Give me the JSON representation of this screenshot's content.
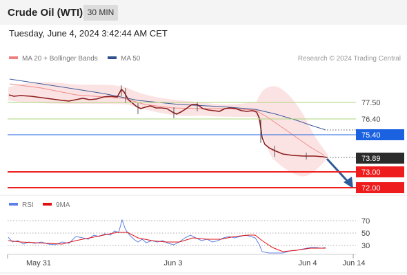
{
  "header": {
    "title": "Crude Oil (WTI)",
    "interval": "30 MIN"
  },
  "timestamp": "Tuesday, June 4, 2024 3:42:44 AM CET",
  "legend": {
    "ma20": {
      "label": "MA 20 + Bollinger Bands",
      "color": "#f08080"
    },
    "ma50": {
      "label": "MA 50",
      "color": "#2f4f8f"
    },
    "copyright": "Research © 2024 Trading Central"
  },
  "price_levels": [
    {
      "label": "77.50",
      "value": 77.5,
      "kind": "resistance",
      "color": "#8cc63f"
    },
    {
      "label": "76.40",
      "value": 76.4,
      "kind": "resistance",
      "color": "#8cc63f"
    },
    {
      "label": "75.40",
      "value": 75.4,
      "kind": "pivot",
      "color": "#1a62e0"
    },
    {
      "label": "73.89",
      "value": 73.89,
      "kind": "last",
      "color": "#2b2b2b"
    },
    {
      "label": "73.00",
      "value": 73.0,
      "kind": "support",
      "color": "#ee1c1c"
    },
    {
      "label": "72.00",
      "value": 72.0,
      "kind": "support",
      "color": "#ee1c1c"
    }
  ],
  "rsi": {
    "legend_rsi": {
      "label": "RSI",
      "color": "#5b7fe6"
    },
    "legend_ma": {
      "label": "9MA",
      "color": "#e01010"
    },
    "levels": [
      "70",
      "50",
      "30"
    ]
  },
  "x_axis": [
    "May 31",
    "Jun 3",
    "Jun 4",
    "Jun 14"
  ]
}
